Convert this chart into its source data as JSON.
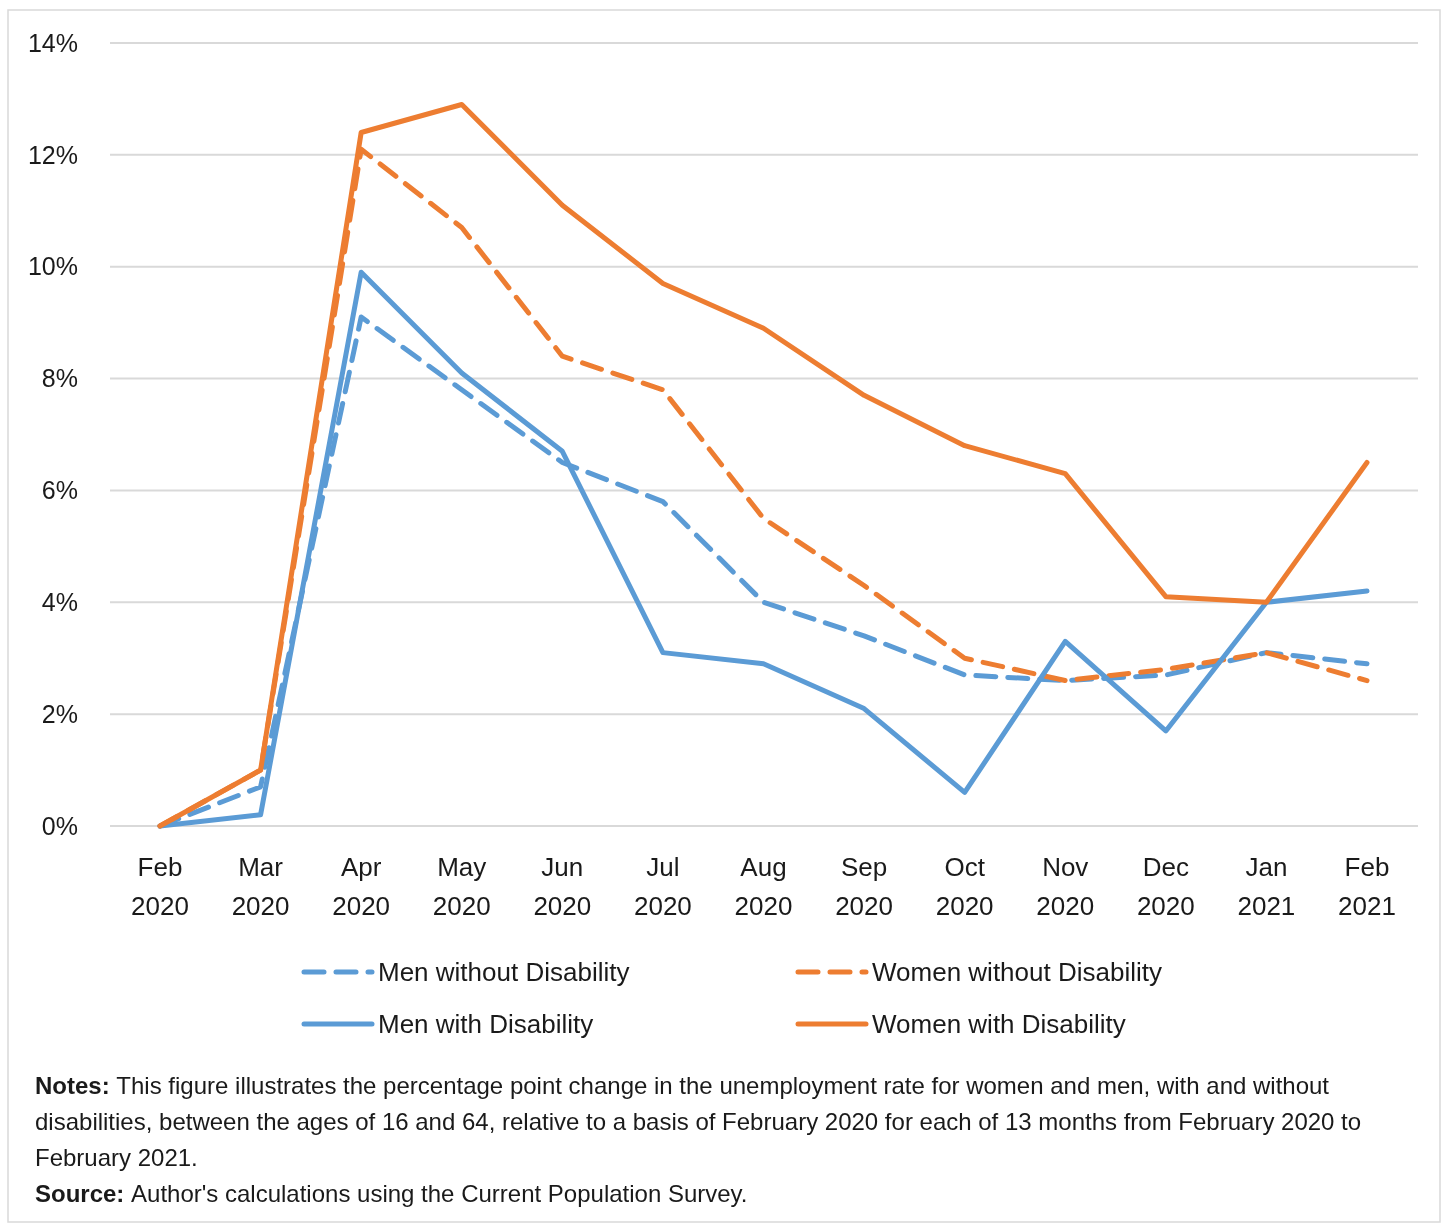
{
  "chart_data": {
    "type": "line",
    "categories": [
      "Feb 2020",
      "Mar 2020",
      "Apr 2020",
      "May 2020",
      "Jun 2020",
      "Jul 2020",
      "Aug 2020",
      "Sep 2020",
      "Oct 2020",
      "Nov 2020",
      "Dec 2020",
      "Jan 2021",
      "Feb 2021"
    ],
    "series": [
      {
        "name": "Men without Disability",
        "color": "#5b9bd5",
        "line_style": "dashed",
        "values": [
          0,
          0.7,
          9.1,
          7.8,
          6.5,
          5.8,
          4.0,
          3.4,
          2.7,
          2.6,
          2.7,
          3.1,
          2.9
        ]
      },
      {
        "name": "Women without Disability",
        "color": "#ed7d31",
        "line_style": "dashed",
        "values": [
          0,
          1.0,
          12.1,
          10.7,
          8.4,
          7.8,
          5.5,
          4.3,
          3.0,
          2.6,
          2.8,
          3.1,
          2.6
        ]
      },
      {
        "name": "Men with Disability",
        "color": "#5b9bd5",
        "line_style": "solid",
        "values": [
          0,
          0.2,
          9.9,
          8.1,
          6.7,
          3.1,
          2.9,
          2.1,
          0.6,
          3.3,
          1.7,
          4.0,
          4.2
        ]
      },
      {
        "name": "Women with Disability",
        "color": "#ed7d31",
        "line_style": "solid",
        "values": [
          0,
          1.0,
          12.4,
          12.9,
          11.1,
          9.7,
          8.9,
          7.7,
          6.8,
          6.3,
          4.1,
          4.0,
          6.5
        ]
      }
    ],
    "ylim": [
      0,
      14
    ],
    "yticks": [
      {
        "value": 0,
        "label": "0%"
      },
      {
        "value": 2,
        "label": "2%"
      },
      {
        "value": 4,
        "label": "4%"
      },
      {
        "value": 6,
        "label": "6%"
      },
      {
        "value": 8,
        "label": "8%"
      },
      {
        "value": 10,
        "label": "10%"
      },
      {
        "value": 12,
        "label": "12%"
      },
      {
        "value": 14,
        "label": "14%"
      }
    ],
    "grid": "y",
    "legend": "bottom",
    "marker": "none",
    "annotations": [
      "Notes: This figure illustrates the percentage point change in the unemployment rate for women and men, with and without disabilities, between the ages of 16 and 64, relative to a basis of February 2020 for each of 13 months from February 2020 to February 2021.",
      "Source: Author's calculations using the Current Population Survey."
    ]
  }
}
